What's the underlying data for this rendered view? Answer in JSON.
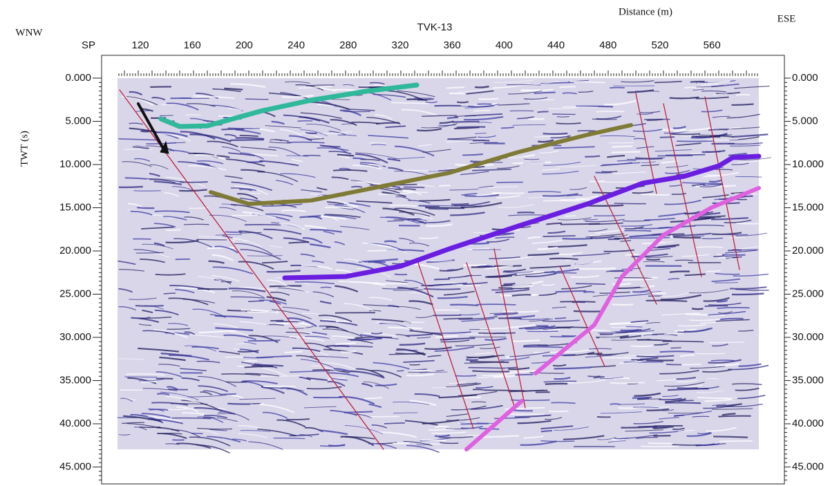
{
  "header": {
    "distance_label": "Distance (m)",
    "left_direction": "WNW",
    "right_direction": "ESE",
    "line_name": "TVK-13",
    "sp_label": "SP"
  },
  "x_axis": {
    "ticks": [
      120,
      160,
      200,
      240,
      280,
      320,
      360,
      400,
      440,
      480,
      520,
      560
    ]
  },
  "y_axis": {
    "label": "TWT (s)",
    "left_ticks": [
      "0.000",
      "5.000",
      "10.000",
      "15.000",
      "20.000",
      "25.000",
      "30.000",
      "35.000",
      "40.000",
      "45.000"
    ],
    "right_ticks": [
      "0.000",
      "5.000",
      "10.000",
      "15.000",
      "20.000",
      "25.000",
      "30.000",
      "35.000",
      "40.000",
      "45.000"
    ]
  }
}
